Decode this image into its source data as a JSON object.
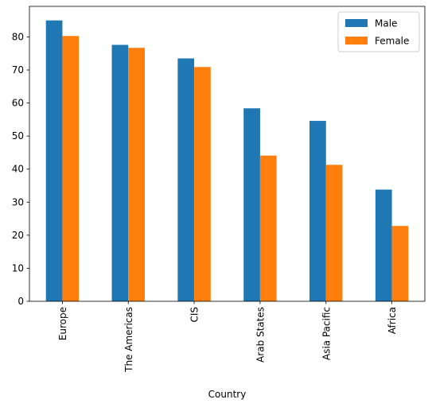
{
  "chart_data": {
    "type": "bar",
    "title": "",
    "xlabel": "Country",
    "ylabel": "",
    "categories": [
      "Europe",
      "The Americas",
      "CIS",
      "Arab States",
      "Asia Pacific",
      "Africa"
    ],
    "series": [
      {
        "name": "Male",
        "color": "#1f77b4",
        "values": [
          85.0,
          77.6,
          73.5,
          58.4,
          54.6,
          33.8
        ]
      },
      {
        "name": "Female",
        "color": "#ff7f0e",
        "values": [
          80.3,
          76.7,
          70.9,
          44.1,
          41.3,
          22.8
        ]
      }
    ],
    "ylim": [
      0,
      89.25
    ],
    "yticks": [
      0,
      10,
      20,
      30,
      40,
      50,
      60,
      70,
      80
    ],
    "grid": false,
    "legend_position": "top-right",
    "xtick_rotation": "vertical"
  }
}
